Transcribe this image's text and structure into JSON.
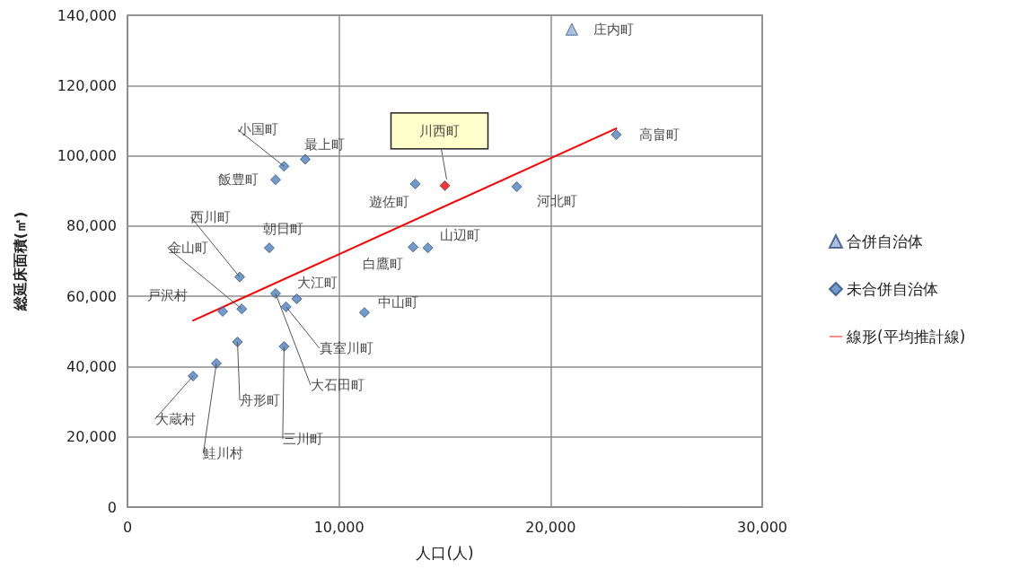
{
  "chart_data": {
    "type": "scatter",
    "xlabel": "人口(人)",
    "ylabel": "総延床面積(㎡)",
    "xlim": [
      0,
      30000
    ],
    "xticks": [
      0,
      {
        "value": 10000,
        "label": "10,000"
      },
      {
        "value": 20000,
        "label": "20,000"
      },
      {
        "value": 30000,
        "label": "30,000"
      }
    ],
    "ylim": [
      0,
      140000
    ],
    "yticks": [
      0,
      {
        "value": 20000,
        "label": "20,000"
      },
      {
        "value": 40000,
        "label": "40,000"
      },
      {
        "value": 60000,
        "label": "60,000"
      },
      {
        "value": 80000,
        "label": "80,000"
      },
      {
        "value": 100000,
        "label": "100,000"
      },
      {
        "value": 120000,
        "label": "120,000"
      },
      {
        "value": 140000,
        "label": "140,000"
      }
    ],
    "grid": true,
    "legend": "right",
    "series": [
      {
        "name": "合併自治体",
        "marker": "triangle",
        "color": "#95b3d7",
        "x": [
          21000
        ],
        "values": [
          136000
        ]
      },
      {
        "name": "未合併自治体",
        "marker": "diamond",
        "color": "#4f81bd",
        "x": [
          23100,
          15000,
          13600,
          18400,
          8400,
          7400,
          7000,
          6700,
          5300,
          14200,
          13500,
          8000,
          7000,
          7500,
          11200,
          5400,
          4500,
          5200,
          7400,
          4200,
          3100
        ],
        "values": [
          106000,
          91500,
          92000,
          91200,
          99000,
          97000,
          93200,
          73800,
          65500,
          73800,
          74000,
          59300,
          60800,
          57000,
          55400,
          56400,
          55700,
          47000,
          45700,
          40900,
          37300
        ],
        "colors": [
          "#4f81bd",
          "#ff0000",
          "#4f81bd",
          "#4f81bd",
          "#4f81bd",
          "#4f81bd",
          "#4f81bd",
          "#4f81bd",
          "#4f81bd",
          "#4f81bd",
          "#4f81bd",
          "#4f81bd",
          "#4f81bd",
          "#4f81bd",
          "#4f81bd",
          "#4f81bd",
          "#4f81bd",
          "#4f81bd",
          "#4f81bd",
          "#4f81bd",
          "#4f81bd"
        ]
      },
      {
        "name": "線形(平均推計線)",
        "type": "line",
        "marker": "none",
        "line_style": "solid",
        "color": "#ff0000",
        "x": [
          3100,
          23100
        ],
        "values": [
          53100,
          107800
        ]
      }
    ],
    "annotations": [
      {
        "text": "庄内町",
        "x": 21000,
        "y": 136000
      },
      {
        "text": "高畠町",
        "x": 23100,
        "y": 106000
      },
      {
        "text": "川西町",
        "x": 15000,
        "y": 91500
      },
      {
        "text": "遊佐町",
        "x": 13600,
        "y": 92000
      },
      {
        "text": "河北町",
        "x": 18400,
        "y": 91200
      },
      {
        "text": "最上町",
        "x": 8400,
        "y": 99000
      },
      {
        "text": "小国町",
        "x": 7400,
        "y": 97000
      },
      {
        "text": "飯豊町",
        "x": 7000,
        "y": 93200
      },
      {
        "text": "朝日町",
        "x": 6700,
        "y": 73800
      },
      {
        "text": "西川町",
        "x": 5300,
        "y": 65500
      },
      {
        "text": "山辺町",
        "x": 14200,
        "y": 73800
      },
      {
        "text": "白鷹町",
        "x": 13500,
        "y": 74000
      },
      {
        "text": "大江町",
        "x": 8000,
        "y": 59300
      },
      {
        "text": "大石田町",
        "x": 7000,
        "y": 60800
      },
      {
        "text": "真室川町",
        "x": 7500,
        "y": 57000
      },
      {
        "text": "中山町",
        "x": 11200,
        "y": 55400
      },
      {
        "text": "金山町",
        "x": 5400,
        "y": 56400
      },
      {
        "text": "戸沢村",
        "x": 4500,
        "y": 55700
      },
      {
        "text": "舟形町",
        "x": 5200,
        "y": 47000
      },
      {
        "text": "三川町",
        "x": 7400,
        "y": 45700
      },
      {
        "text": "鮭川村",
        "x": 4200,
        "y": 40900
      },
      {
        "text": "大蔵村",
        "x": 3100,
        "y": 37300
      }
    ]
  }
}
